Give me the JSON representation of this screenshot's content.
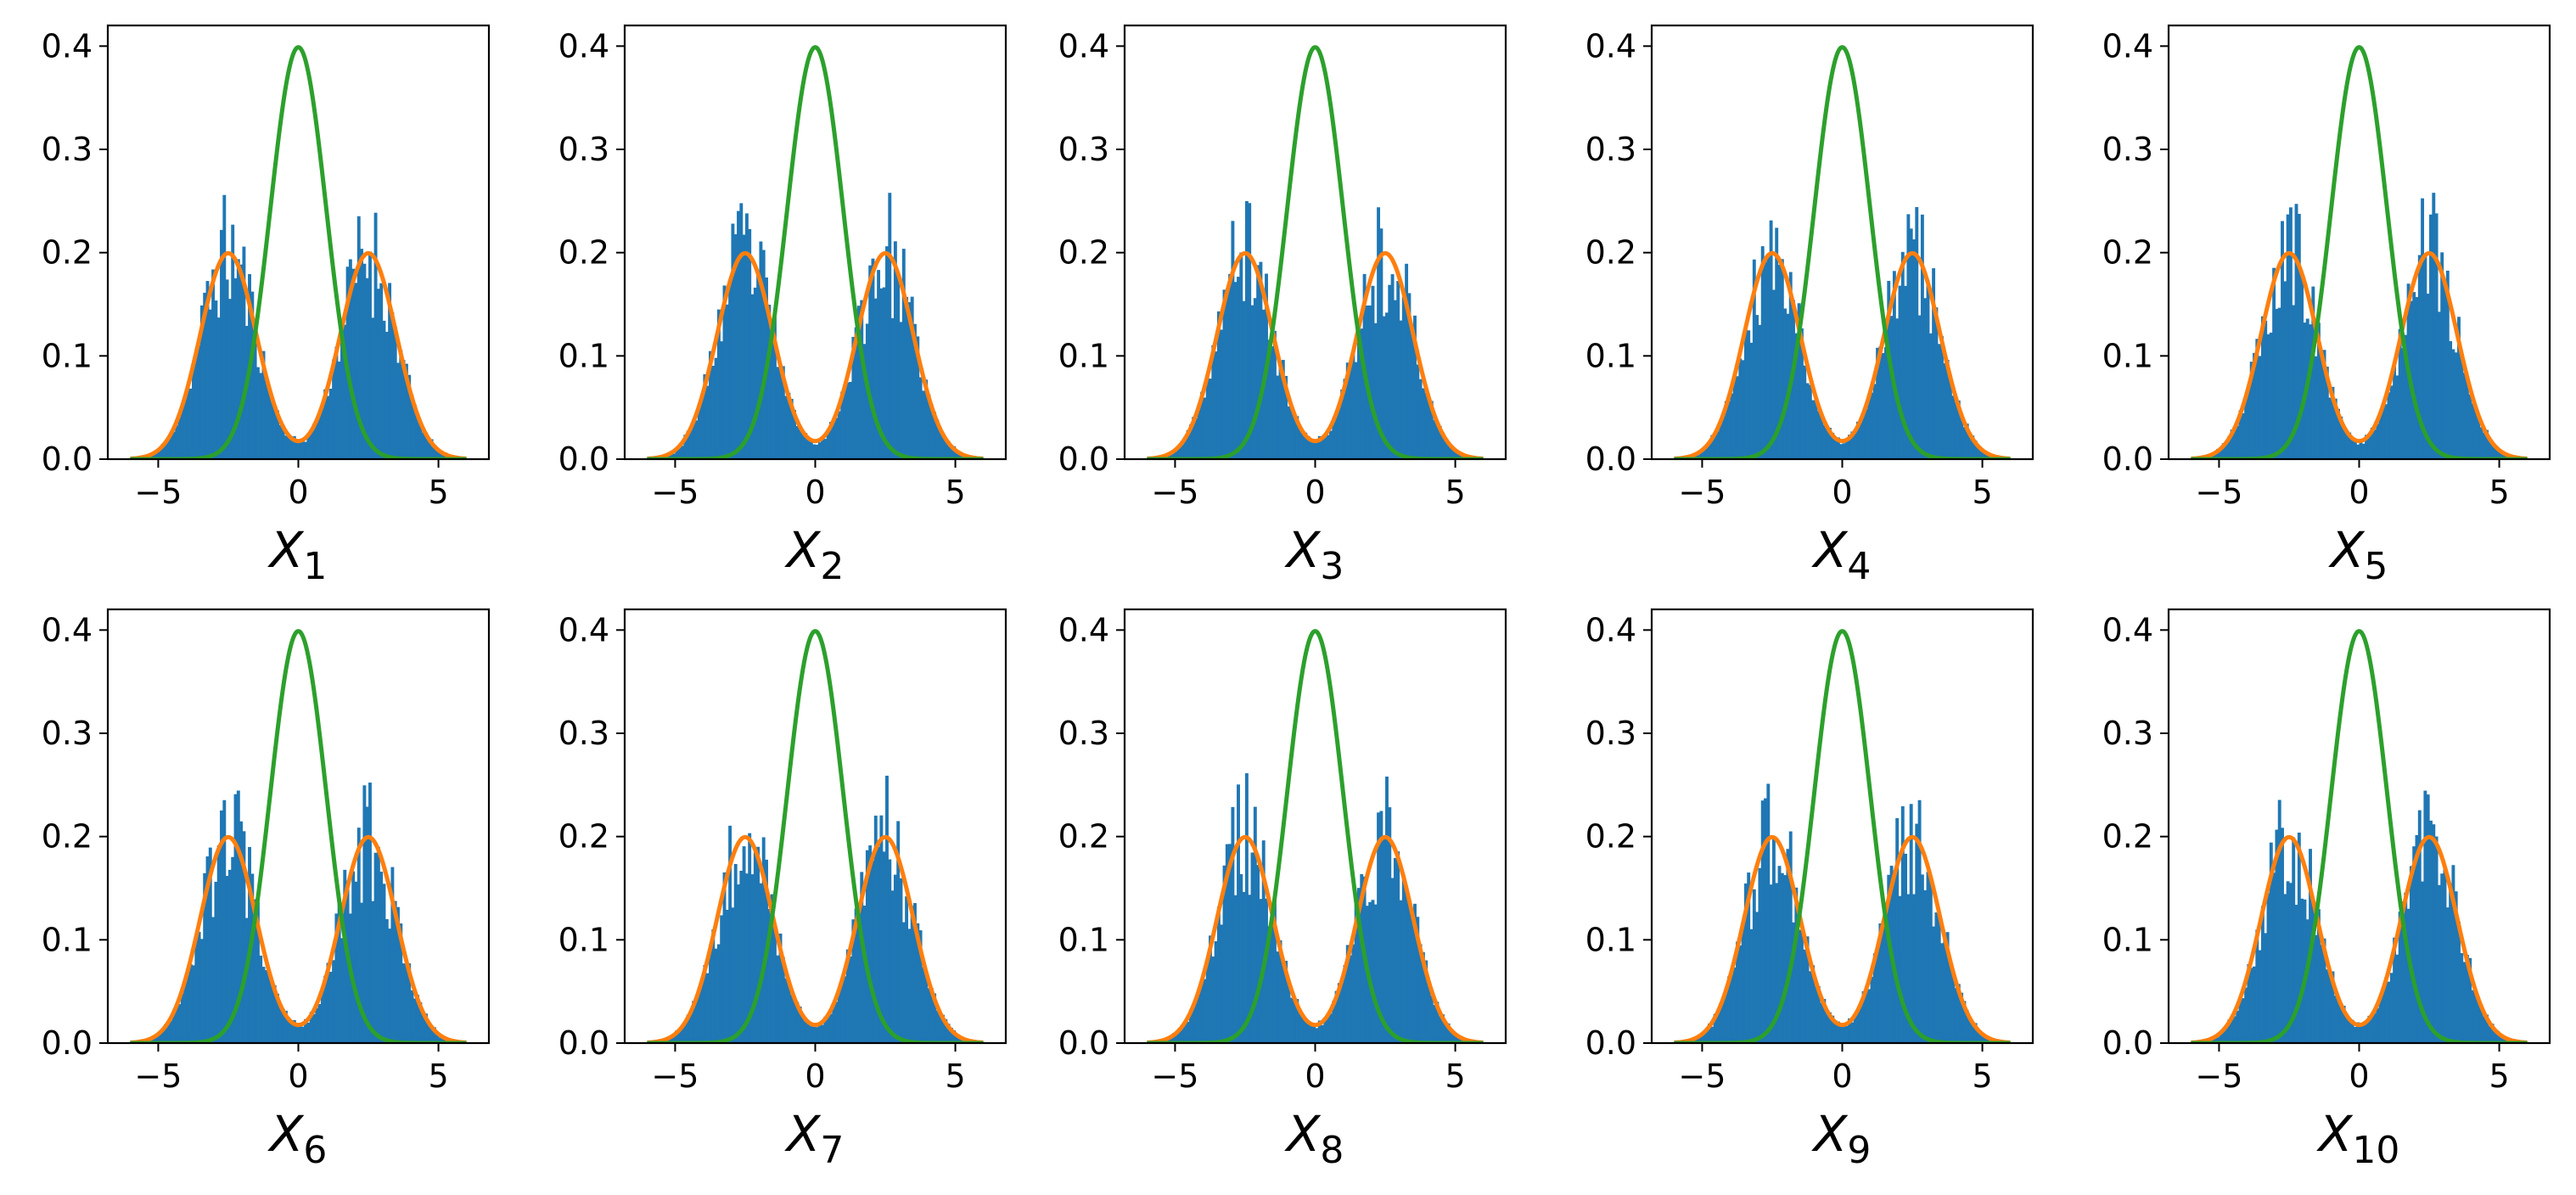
{
  "chart_data": {
    "type": "histogram-grid",
    "layout": {
      "rows": 2,
      "cols": 5
    },
    "shared": {
      "xlim": [
        -6.8,
        6.8
      ],
      "ylim": [
        0,
        0.42
      ],
      "x_ticks": [
        -5,
        0,
        5
      ],
      "x_tick_labels": [
        "−5",
        "0",
        "5"
      ],
      "y_ticks": [
        0.0,
        0.1,
        0.2,
        0.3,
        0.4
      ],
      "y_tick_labels": [
        "0.0",
        "0.1",
        "0.2",
        "0.3",
        "0.4"
      ],
      "histogram": {
        "range": [
          -6,
          6
        ],
        "bins": 120,
        "mixture_means": [
          -2.5,
          2.5
        ],
        "mixture_sd": 1,
        "mixture_weights": [
          0.5,
          0.5
        ]
      },
      "series": [
        {
          "name": "samples histogram",
          "kind": "bar",
          "color": "#1f77b4"
        },
        {
          "name": "target mixture density",
          "kind": "line",
          "formula": "0.5*N(-2.5,1)+0.5*N(2.5,1)",
          "peak": 0.2,
          "color": "#ff7f0e"
        },
        {
          "name": "standard normal density",
          "kind": "line",
          "formula": "N(0,1)",
          "peak": 0.4,
          "color": "#2ca02c"
        }
      ]
    },
    "panels": [
      {
        "xlabel_var": "X",
        "xlabel_sub": "1",
        "seed": 11
      },
      {
        "xlabel_var": "X",
        "xlabel_sub": "2",
        "seed": 23
      },
      {
        "xlabel_var": "X",
        "xlabel_sub": "3",
        "seed": 37
      },
      {
        "xlabel_var": "X",
        "xlabel_sub": "4",
        "seed": 41
      },
      {
        "xlabel_var": "X",
        "xlabel_sub": "5",
        "seed": 53
      },
      {
        "xlabel_var": "X",
        "xlabel_sub": "6",
        "seed": 67
      },
      {
        "xlabel_var": "X",
        "xlabel_sub": "7",
        "seed": 71
      },
      {
        "xlabel_var": "X",
        "xlabel_sub": "8",
        "seed": 83
      },
      {
        "xlabel_var": "X",
        "xlabel_sub": "9",
        "seed": 97
      },
      {
        "xlabel_var": "X",
        "xlabel_sub": "10",
        "seed": 101
      }
    ]
  }
}
